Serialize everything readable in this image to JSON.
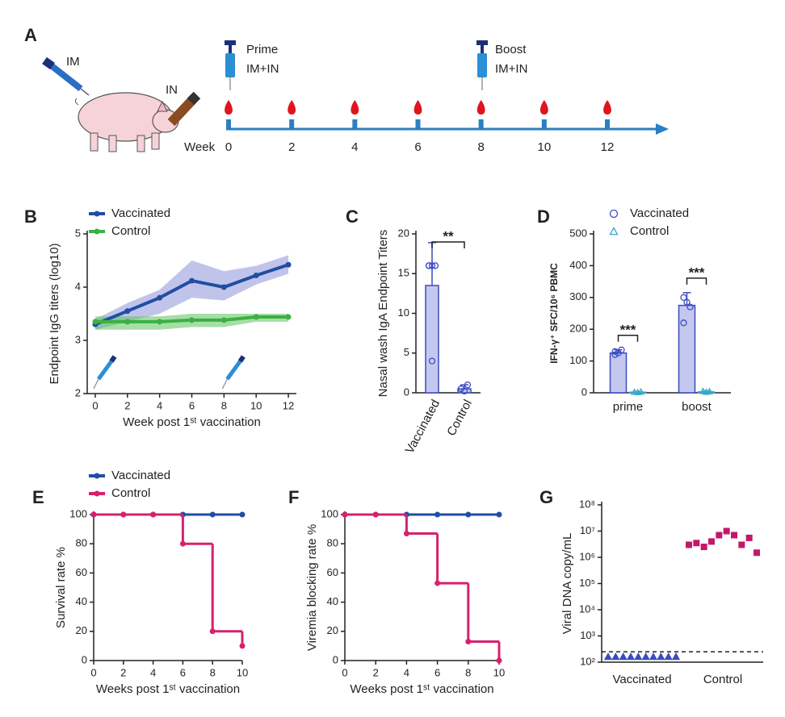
{
  "schematic": {
    "panel": "A",
    "im": "IM",
    "in": "IN",
    "prime": "Prime",
    "prime_route": "IM+IN",
    "boost": "Boost",
    "boost_route": "IM+IN",
    "week_label": "Week",
    "weeks": [
      0,
      2,
      4,
      6,
      8,
      10,
      12
    ]
  },
  "chart_data": [
    {
      "type": "line",
      "panel": "B",
      "ylabel": "Endpoint IgG titers (log10)",
      "xlabel": "Week post 1ˢᵗ vaccination",
      "x": [
        0,
        2,
        4,
        6,
        8,
        10,
        12
      ],
      "xlim": [
        -0.5,
        12.5
      ],
      "xticks": [
        0,
        2,
        4,
        6,
        8,
        10,
        12
      ],
      "ylim": [
        2,
        5
      ],
      "yticks": [
        2,
        3,
        4,
        5
      ],
      "series": [
        {
          "name": "Vaccinated",
          "color": "#1f4ea3",
          "band_color": "#8e93d9",
          "values": [
            3.3,
            3.55,
            3.8,
            4.12,
            4.0,
            4.22,
            4.42
          ],
          "lower": [
            3.2,
            3.35,
            3.5,
            3.8,
            3.75,
            4.05,
            4.25
          ],
          "upper": [
            3.4,
            3.7,
            3.95,
            4.5,
            4.3,
            4.4,
            4.6
          ]
        },
        {
          "name": "Control",
          "color": "#3cb043",
          "band_color": "#5cc25c",
          "values": [
            3.35,
            3.35,
            3.35,
            3.38,
            3.38,
            3.44,
            3.44
          ],
          "lower": [
            3.2,
            3.2,
            3.2,
            3.25,
            3.25,
            3.35,
            3.35
          ],
          "upper": [
            3.45,
            3.45,
            3.45,
            3.5,
            3.5,
            3.5,
            3.5
          ]
        }
      ]
    },
    {
      "type": "bar",
      "panel": "C",
      "ylabel": "Nasal wash IgA Endpoint Titers",
      "categories": [
        "Vaccinated",
        "Control"
      ],
      "ylim": [
        0,
        20
      ],
      "yticks": [
        0,
        5,
        10,
        15,
        20
      ],
      "significance": [
        "**"
      ],
      "series": [
        {
          "color": "#3b4cc0",
          "fill": "#c5c8ee",
          "values": [
            13.5,
            0.5
          ],
          "errors": [
            5.4,
            0.5
          ],
          "points": [
            [
              16,
              16,
              16,
              16,
              4
            ],
            [
              0.5,
              0.2,
              1
            ]
          ]
        }
      ]
    },
    {
      "type": "bar",
      "panel": "D",
      "ylabel": "IFN-γ⁺ SFC/10⁶ PBMC",
      "categories": [
        "prime",
        "boost"
      ],
      "ylim": [
        0,
        500
      ],
      "yticks": [
        0,
        100,
        200,
        300,
        400,
        500
      ],
      "significance": [
        "***",
        "***"
      ],
      "series": [
        {
          "name": "Vaccinated",
          "marker": "circle",
          "color": "#3b4cc0",
          "fill": "#c5c8ee",
          "values": [
            125,
            275
          ],
          "errors": [
            10,
            40
          ],
          "points": [
            [
              130,
              125,
              135,
              120
            ],
            [
              300,
              285,
              270,
              220
            ]
          ]
        },
        {
          "name": "Control",
          "marker": "triangle",
          "color": "#3aa6c8",
          "fill": "#d6eef6",
          "values": [
            2,
            3
          ],
          "errors": [
            1,
            2
          ],
          "points": [
            [
              2,
              1,
              3
            ],
            [
              5,
              2,
              4
            ]
          ]
        }
      ]
    },
    {
      "type": "step",
      "panel": "E",
      "ylabel": "Survival rate %",
      "xlabel": "Weeks post 1ˢᵗ vaccination",
      "x": [
        0,
        2,
        4,
        6,
        8,
        10
      ],
      "xlim": [
        0,
        10
      ],
      "xticks": [
        0,
        2,
        4,
        6,
        8,
        10
      ],
      "ylim": [
        0,
        100
      ],
      "yticks": [
        0,
        20,
        40,
        60,
        80,
        100
      ],
      "series": [
        {
          "name": "Vaccinated",
          "color": "#1f4ea3",
          "values": [
            100,
            100,
            100,
            100,
            100,
            100
          ]
        },
        {
          "name": "Control",
          "color": "#d6226c",
          "values": [
            100,
            100,
            100,
            80,
            20,
            10
          ]
        }
      ]
    },
    {
      "type": "step",
      "panel": "F",
      "ylabel": "Viremia blocking rate %",
      "xlabel": "Weeks post 1ˢᵗ vaccination",
      "x": [
        0,
        2,
        4,
        6,
        8,
        10
      ],
      "xlim": [
        0,
        10
      ],
      "xticks": [
        0,
        2,
        4,
        6,
        8,
        10
      ],
      "ylim": [
        0,
        100
      ],
      "yticks": [
        0,
        20,
        40,
        60,
        80,
        100
      ],
      "series": [
        {
          "color": "#1f4ea3",
          "values": [
            100,
            100,
            100,
            100,
            100,
            100
          ]
        },
        {
          "color": "#d6226c",
          "values": [
            100,
            100,
            87,
            53,
            13,
            0
          ]
        }
      ]
    },
    {
      "type": "strip",
      "panel": "G",
      "ylabel": "Viral DNA copy/mL",
      "categories": [
        "Vaccinated",
        "Control"
      ],
      "log_y": true,
      "ylim": [
        100,
        100000000
      ],
      "threshold": 250,
      "yticks": [
        {
          "value": 100,
          "label": "10²"
        },
        {
          "value": 1000,
          "label": "10³"
        },
        {
          "value": 10000,
          "label": "10⁴"
        },
        {
          "value": 100000,
          "label": "10⁵"
        },
        {
          "value": 1000000,
          "label": "10⁶"
        },
        {
          "value": 10000000,
          "label": "10⁷"
        },
        {
          "value": 100000000,
          "label": "10⁸"
        }
      ],
      "series": [
        {
          "color": "#3b4cc0",
          "marker": "triangle",
          "points": [
            [
              160,
              160,
              160,
              160,
              160,
              160,
              160,
              160,
              160,
              160
            ],
            []
          ]
        },
        {
          "color": "#c2186b",
          "marker": "square",
          "points": [
            [],
            [
              3000000,
              3500000,
              2500000,
              4000000,
              7000000,
              10000000,
              7000000,
              3000000,
              5500000,
              1500000
            ]
          ]
        }
      ]
    }
  ]
}
